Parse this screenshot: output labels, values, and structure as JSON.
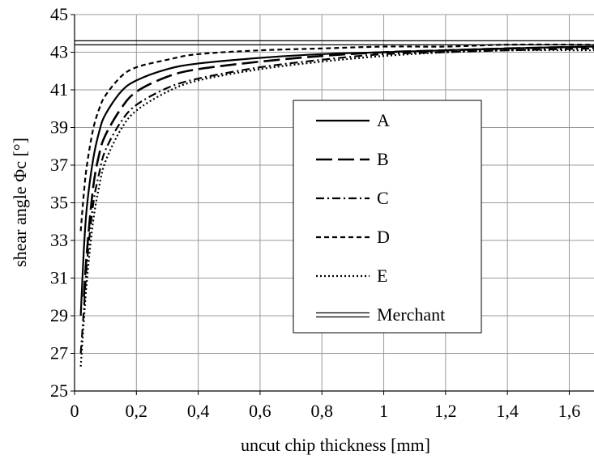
{
  "chart_data": {
    "type": "line",
    "title": "",
    "xlabel": "uncut chip thickness [mm]",
    "ylabel": "shear angle Φc  [°]",
    "xlim": [
      0,
      1.68
    ],
    "ylim": [
      25,
      45
    ],
    "x_ticks": [
      0,
      0.2,
      0.4,
      0.6,
      0.8,
      1.0,
      1.2,
      1.4,
      1.6
    ],
    "x_tick_labels": [
      "0",
      "0,2",
      "0,4",
      "0,6",
      "0,8",
      "1",
      "1,2",
      "1,4",
      "1,6"
    ],
    "y_ticks": [
      25,
      27,
      29,
      31,
      33,
      35,
      37,
      39,
      41,
      43,
      45
    ],
    "y_tick_labels": [
      "25",
      "27",
      "29",
      "31",
      "33",
      "35",
      "37",
      "39",
      "41",
      "43",
      "45"
    ],
    "grid": true,
    "legend_position": "center-right",
    "series": [
      {
        "name": "A",
        "style": "solid",
        "x": [
          0.02,
          0.03,
          0.04,
          0.06,
          0.08,
          0.1,
          0.15,
          0.2,
          0.3,
          0.4,
          0.6,
          0.8,
          1.0,
          1.2,
          1.4,
          1.68
        ],
        "y": [
          29.0,
          32.5,
          34.8,
          37.3,
          38.8,
          39.7,
          40.9,
          41.5,
          42.1,
          42.4,
          42.7,
          42.9,
          43.0,
          43.1,
          43.2,
          43.3
        ]
      },
      {
        "name": "B",
        "style": "longdash",
        "x": [
          0.03,
          0.04,
          0.06,
          0.08,
          0.1,
          0.15,
          0.2,
          0.3,
          0.4,
          0.6,
          0.8,
          1.0,
          1.2,
          1.4,
          1.68
        ],
        "y": [
          30.0,
          32.4,
          35.8,
          37.6,
          38.6,
          40.0,
          40.9,
          41.7,
          42.1,
          42.5,
          42.8,
          43.0,
          43.1,
          43.2,
          43.3
        ]
      },
      {
        "name": "C",
        "style": "dashdot",
        "x": [
          0.02,
          0.03,
          0.04,
          0.06,
          0.08,
          0.1,
          0.15,
          0.2,
          0.3,
          0.4,
          0.6,
          0.8,
          1.0,
          1.2,
          1.4,
          1.68
        ],
        "y": [
          27.0,
          29.3,
          31.8,
          34.9,
          36.6,
          37.8,
          39.3,
          40.2,
          41.1,
          41.6,
          42.2,
          42.6,
          42.9,
          43.0,
          43.1,
          43.2
        ]
      },
      {
        "name": "D",
        "style": "shortdash",
        "x": [
          0.02,
          0.03,
          0.04,
          0.06,
          0.08,
          0.1,
          0.15,
          0.2,
          0.3,
          0.4,
          0.6,
          0.8,
          1.0,
          1.2,
          1.4,
          1.68
        ],
        "y": [
          33.5,
          35.5,
          37.0,
          38.9,
          40.0,
          40.7,
          41.7,
          42.2,
          42.6,
          42.9,
          43.1,
          43.2,
          43.3,
          43.3,
          43.4,
          43.4
        ]
      },
      {
        "name": "E",
        "style": "dotted",
        "x": [
          0.02,
          0.03,
          0.04,
          0.06,
          0.08,
          0.1,
          0.15,
          0.2,
          0.3,
          0.4,
          0.6,
          0.8,
          1.0,
          1.2,
          1.4,
          1.68
        ],
        "y": [
          26.3,
          28.7,
          30.9,
          34.0,
          35.9,
          37.2,
          38.9,
          39.9,
          40.9,
          41.5,
          42.1,
          42.5,
          42.8,
          43.0,
          43.1,
          43.1
        ]
      },
      {
        "name": "Merchant",
        "style": "double",
        "x": [
          0,
          1.68
        ],
        "y": [
          43.5,
          43.5
        ]
      }
    ]
  }
}
